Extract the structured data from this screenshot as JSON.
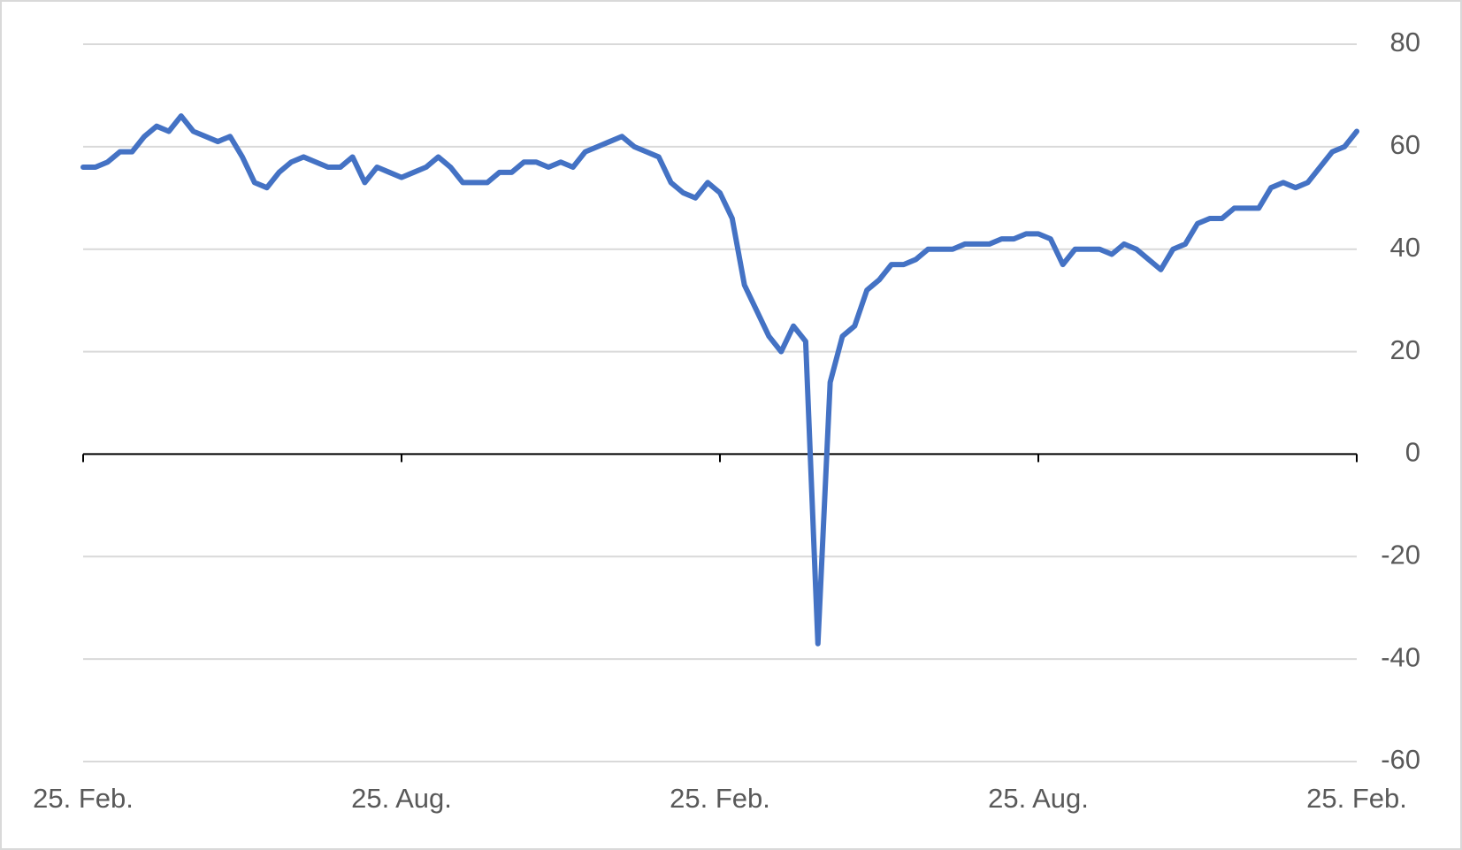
{
  "chart_data": {
    "type": "line",
    "categories": [
      "25. Feb.",
      null,
      null,
      null,
      null,
      null,
      null,
      null,
      null,
      null,
      null,
      null,
      null,
      null,
      null,
      null,
      null,
      null,
      null,
      null,
      null,
      null,
      null,
      null,
      null,
      null,
      "25. Aug.",
      null,
      null,
      null,
      null,
      null,
      null,
      null,
      null,
      null,
      null,
      null,
      null,
      null,
      null,
      null,
      null,
      null,
      null,
      null,
      null,
      null,
      null,
      null,
      null,
      null,
      "25. Feb.",
      null,
      null,
      null,
      null,
      null,
      null,
      null,
      null,
      null,
      null,
      null,
      null,
      null,
      null,
      null,
      null,
      null,
      null,
      null,
      null,
      null,
      null,
      null,
      null,
      null,
      "25. Aug.",
      null,
      null,
      null,
      null,
      null,
      null,
      null,
      null,
      null,
      null,
      null,
      null,
      null,
      null,
      null,
      null,
      null,
      null,
      null,
      null,
      null,
      null,
      null,
      null,
      null,
      "25. Feb."
    ],
    "series": [
      {
        "color": "#4472c4",
        "values": [
          56,
          56,
          57,
          59,
          59,
          62,
          64,
          63,
          66,
          63,
          62,
          61,
          62,
          58,
          53,
          52,
          55,
          57,
          58,
          57,
          56,
          56,
          58,
          53,
          56,
          55,
          54,
          55,
          56,
          58,
          56,
          53,
          53,
          53,
          55,
          55,
          57,
          57,
          56,
          57,
          56,
          59,
          60,
          61,
          62,
          60,
          59,
          58,
          53,
          51,
          50,
          53,
          51,
          46,
          33,
          28,
          23,
          20,
          25,
          22,
          -37,
          14,
          23,
          25,
          32,
          34,
          37,
          37,
          38,
          40,
          40,
          40,
          41,
          41,
          41,
          42,
          42,
          43,
          43,
          42,
          37,
          40,
          40,
          40,
          39,
          41,
          40,
          38,
          36,
          40,
          41,
          45,
          46,
          46,
          48,
          48,
          48,
          52,
          53,
          52,
          53,
          56,
          59,
          60,
          63
        ]
      }
    ],
    "ylim": [
      -60,
      80
    ],
    "yticks": [
      -60,
      -40,
      -20,
      0,
      20,
      40,
      60,
      80
    ],
    "grid": true
  }
}
